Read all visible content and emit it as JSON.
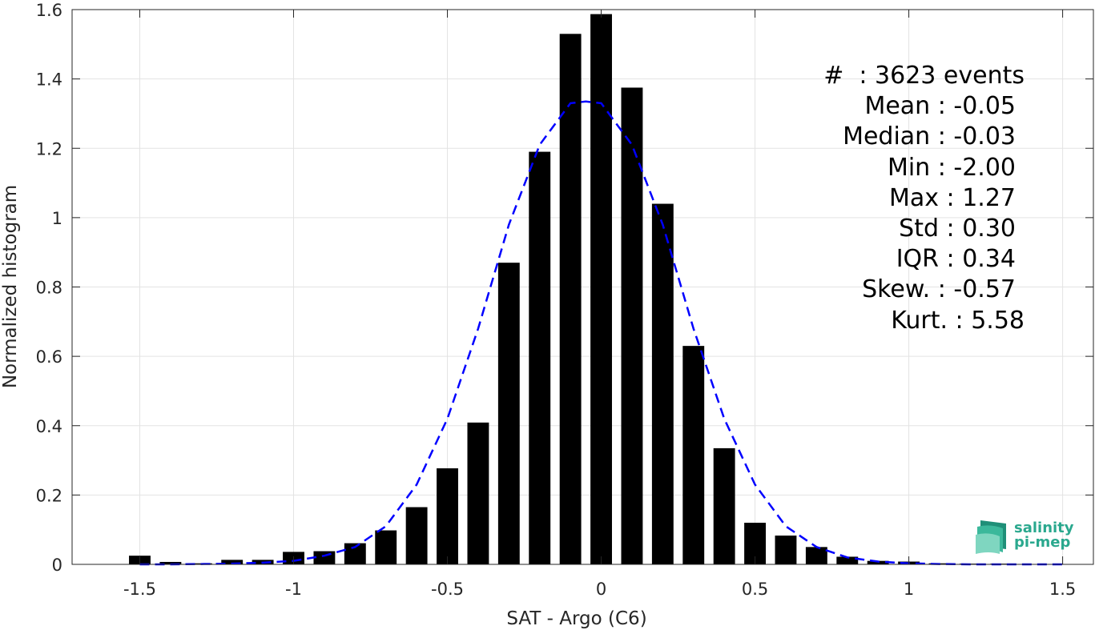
{
  "chart_data": {
    "type": "bar",
    "xlabel": "SAT - Argo (C6)",
    "ylabel": "Normalized histogram",
    "xlim": [
      -1.72,
      1.6
    ],
    "ylim": [
      0,
      1.6
    ],
    "xticks": [
      -1.5,
      -1,
      -0.5,
      0,
      0.5,
      1,
      1.5
    ],
    "xtick_labels": [
      "-1.5",
      "-1",
      "-0.5",
      "0",
      "0.5",
      "1",
      "1.5"
    ],
    "yticks": [
      0,
      0.2,
      0.4,
      0.6,
      0.8,
      1,
      1.2,
      1.4,
      1.6
    ],
    "ytick_labels": [
      "0",
      "0.2",
      "0.4",
      "0.6",
      "0.8",
      "1",
      "1.2",
      "1.4",
      "1.6"
    ],
    "grid": true,
    "bar_width": 0.07,
    "bars": {
      "x": [
        -1.5,
        -1.4,
        -1.3,
        -1.2,
        -1.1,
        -1.0,
        -0.9,
        -0.8,
        -0.7,
        -0.6,
        -0.5,
        -0.4,
        -0.3,
        -0.2,
        -0.1,
        0.0,
        0.1,
        0.2,
        0.3,
        0.4,
        0.5,
        0.6,
        0.7,
        0.8,
        0.9,
        1.0,
        1.1,
        1.2,
        1.3
      ],
      "values": [
        0.025,
        0.007,
        0.003,
        0.013,
        0.013,
        0.036,
        0.038,
        0.061,
        0.098,
        0.165,
        0.277,
        0.409,
        0.87,
        1.19,
        1.53,
        1.587,
        1.375,
        1.04,
        0.63,
        0.335,
        0.12,
        0.083,
        0.05,
        0.022,
        0.01,
        0.008,
        0.003,
        0.002,
        0.002
      ],
      "color": "#000000"
    },
    "fit_line": {
      "style": "dashed",
      "color": "#0000ff",
      "x": [
        -1.5,
        -1.4,
        -1.3,
        -1.2,
        -1.1,
        -1.0,
        -0.9,
        -0.8,
        -0.7,
        -0.6,
        -0.5,
        -0.4,
        -0.3,
        -0.2,
        -0.1,
        -0.05,
        0.0,
        0.1,
        0.2,
        0.3,
        0.4,
        0.5,
        0.6,
        0.7,
        0.8,
        0.9,
        1.0,
        1.1,
        1.2,
        1.3,
        1.4,
        1.5
      ],
      "y": [
        0.0,
        0.0,
        0.001,
        0.002,
        0.005,
        0.01,
        0.025,
        0.05,
        0.11,
        0.23,
        0.42,
        0.68,
        0.98,
        1.21,
        1.33,
        1.335,
        1.33,
        1.21,
        0.98,
        0.68,
        0.42,
        0.23,
        0.11,
        0.05,
        0.02,
        0.008,
        0.003,
        0.001,
        0.0,
        0.0,
        0.0,
        0.0
      ]
    }
  },
  "stats": {
    "count": "#  : 3623 events",
    "mean": "Mean : -0.05",
    "median": "Median : -0.03",
    "min": "Min : -2.00",
    "max": "Max : 1.27",
    "std": "Std : 0.30",
    "iqr": "IQR : 0.34",
    "skew": "Skew. : -0.57",
    "kurt": "Kurt. : 5.58"
  },
  "logo": {
    "line1": "salinity",
    "line2": "pi-mep",
    "color": "#2aa88e"
  }
}
